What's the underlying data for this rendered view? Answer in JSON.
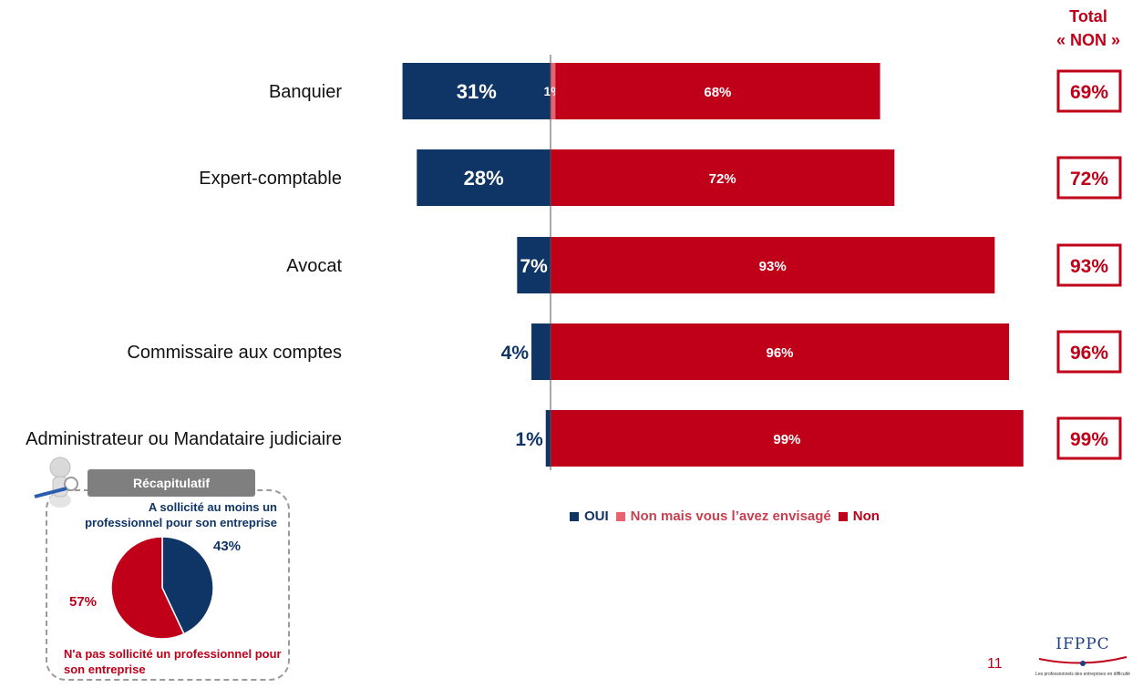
{
  "total_header": {
    "line1": "Total",
    "line2": "« NON »"
  },
  "colors": {
    "oui": "#0f3466",
    "envisage": "#e8636f",
    "non": "#c00018"
  },
  "chart_data": {
    "type": "bar",
    "orientation": "horizontal-diverging",
    "categories": [
      "Banquier",
      "Expert-comptable",
      "Avocat",
      "Commissaire aux comptes",
      "Administrateur ou Mandataire judiciaire"
    ],
    "series": [
      {
        "name": "OUI",
        "values": [
          31,
          28,
          7,
          4,
          1
        ],
        "labels": [
          "31%",
          "28%",
          "7%",
          "4%",
          "1%"
        ]
      },
      {
        "name": "Non mais vous l’avez envisagé",
        "values": [
          1,
          0,
          0,
          0,
          0
        ],
        "labels": [
          "1%",
          "",
          "",
          "",
          ""
        ]
      },
      {
        "name": "Non",
        "values": [
          68,
          72,
          93,
          96,
          99
        ],
        "labels": [
          "68%",
          "72%",
          "93%",
          "96%",
          "99%"
        ]
      }
    ],
    "totals_non": [
      "69%",
      "72%",
      "93%",
      "96%",
      "99%"
    ],
    "unit": "%",
    "legend_position": "bottom"
  },
  "recap": {
    "title": "Récapitulatif",
    "top_text_line1": "A sollicité au moins un",
    "top_text_line2": "professionnel pour son entreprise",
    "bottom_text_line1": "N'a pas sollicité un professionnel pour",
    "bottom_text_line2": "son entreprise",
    "pie": {
      "type": "pie",
      "slices": [
        {
          "name": "A sollicité au moins un professionnel pour son entreprise",
          "value": 43,
          "label": "43%"
        },
        {
          "name": "N'a pas sollicité un professionnel pour son entreprise",
          "value": 57,
          "label": "57%"
        }
      ]
    }
  },
  "page_number": "11",
  "logo": {
    "text": "IFPPC",
    "tagline": "Les professionnels des entreprises en difficulté"
  }
}
